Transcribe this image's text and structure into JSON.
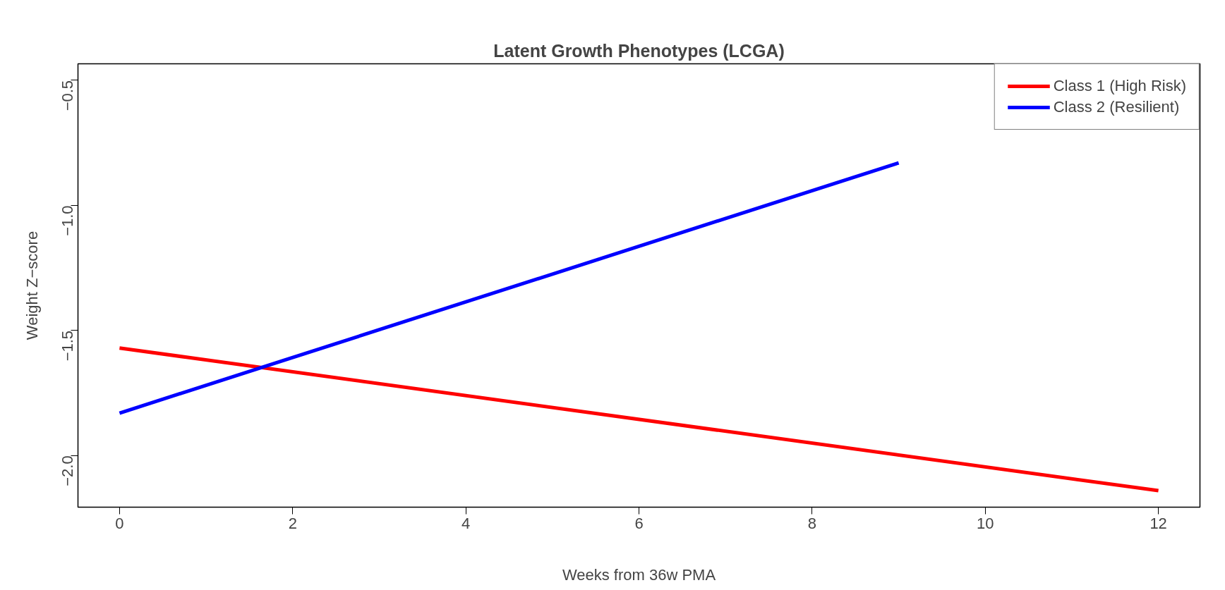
{
  "chart_data": {
    "type": "line",
    "title": "Latent Growth Phenotypes (LCGA)",
    "xlabel": "Weeks from 36w PMA",
    "ylabel": "Weight Z−score",
    "xlim": [
      -0.48,
      12.48
    ],
    "ylim": [
      -2.206,
      -0.434
    ],
    "xticks": [
      0,
      2,
      4,
      6,
      8,
      10,
      12
    ],
    "yticks": [
      {
        "value": -2.0,
        "label": "−2.0"
      },
      {
        "value": -1.5,
        "label": "−1.5"
      },
      {
        "value": -1.0,
        "label": "−1.0"
      },
      {
        "value": -0.5,
        "label": "−0.5"
      }
    ],
    "grid": false,
    "legend": "top right",
    "marker": "none",
    "line_style": "solid",
    "series": [
      {
        "name": "Class 1 (High Risk)",
        "color": "#ff0000",
        "x": [
          0,
          12
        ],
        "values": [
          -1.57,
          -2.14
        ]
      },
      {
        "name": "Class 2 (Resilient)",
        "color": "#0000ff",
        "x": [
          0,
          9
        ],
        "values": [
          -1.83,
          -0.83
        ]
      }
    ]
  }
}
